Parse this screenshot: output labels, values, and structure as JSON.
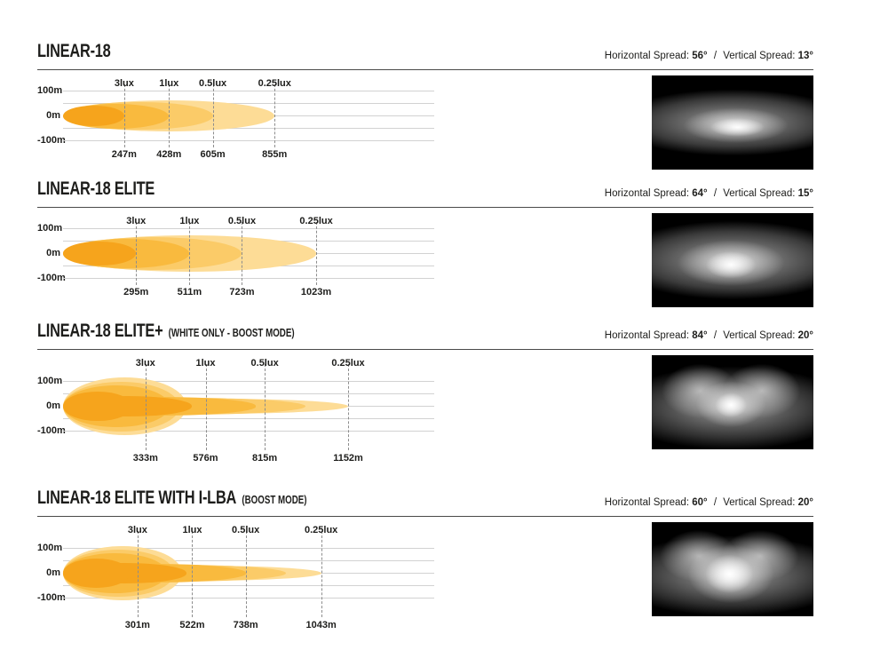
{
  "colors": {
    "beam_contours": [
      "#F6A41C",
      "#F9BA3E",
      "#FBCB68",
      "#FDDC96"
    ],
    "grid_line": "#d2d2d2",
    "dash_line": "#8d8d8d",
    "text": "#1d1d1b"
  },
  "axis": {
    "y_labels": [
      "100m",
      "0m",
      "-100m"
    ]
  },
  "sections": [
    {
      "title": "LINEAR-18",
      "note": "",
      "spread": {
        "h_label": "Horizontal Spread:",
        "h_value": "56°",
        "separator": "/",
        "v_label": "Vertical Spread:",
        "v_value": "13°"
      }
    },
    {
      "title": "LINEAR-18 ELITE",
      "note": "",
      "spread": {
        "h_label": "Horizontal Spread:",
        "h_value": "64°",
        "separator": "/",
        "v_label": "Vertical Spread:",
        "v_value": "15°"
      }
    },
    {
      "title": "LINEAR-18 ELITE+",
      "note": "(WHITE ONLY - BOOST MODE)",
      "spread": {
        "h_label": "Horizontal Spread:",
        "h_value": "84°",
        "separator": "/",
        "v_label": "Vertical Spread:",
        "v_value": "20°"
      }
    },
    {
      "title": "LINEAR-18 ELITE WITH I-LBA",
      "note": "(BOOST MODE)",
      "spread": {
        "h_label": "Horizontal Spread:",
        "h_value": "60°",
        "separator": "/",
        "v_label": "Vertical Spread:",
        "v_value": "20°"
      }
    }
  ],
  "chart_data": [
    {
      "type": "area",
      "title": "LINEAR-18 beam pattern",
      "horizontal_spread_deg": 56,
      "vertical_spread_deg": 13,
      "beam_style": "ellipse",
      "x_axis": {
        "unit": "m",
        "max_m": 1500
      },
      "y_axis": {
        "labels": [
          "100m",
          "0m",
          "-100m"
        ],
        "gridlines_m": [
          100,
          50,
          0,
          -50,
          -100
        ]
      },
      "contours": [
        {
          "lux": "3lux",
          "distance_m": 247,
          "distance_label": "247m",
          "half_height_m": 42
        },
        {
          "lux": "1lux",
          "distance_m": 428,
          "distance_label": "428m",
          "half_height_m": 50
        },
        {
          "lux": "0.5lux",
          "distance_m": 605,
          "distance_label": "605m",
          "half_height_m": 57
        },
        {
          "lux": "0.25lux",
          "distance_m": 855,
          "distance_label": "855m",
          "half_height_m": 63
        }
      ]
    },
    {
      "type": "area",
      "title": "LINEAR-18 ELITE beam pattern",
      "horizontal_spread_deg": 64,
      "vertical_spread_deg": 15,
      "beam_style": "ellipse",
      "x_axis": {
        "unit": "m",
        "max_m": 1500
      },
      "y_axis": {
        "labels": [
          "100m",
          "0m",
          "-100m"
        ],
        "gridlines_m": [
          100,
          50,
          0,
          -50,
          -100
        ]
      },
      "contours": [
        {
          "lux": "3lux",
          "distance_m": 295,
          "distance_label": "295m",
          "half_height_m": 48
        },
        {
          "lux": "1lux",
          "distance_m": 511,
          "distance_label": "511m",
          "half_height_m": 58
        },
        {
          "lux": "0.5lux",
          "distance_m": 723,
          "distance_label": "723m",
          "half_height_m": 66
        },
        {
          "lux": "0.25lux",
          "distance_m": 1023,
          "distance_label": "1023m",
          "half_height_m": 72
        }
      ]
    },
    {
      "type": "area",
      "title": "LINEAR-18 ELITE+ (WHITE ONLY - BOOST MODE) beam pattern",
      "horizontal_spread_deg": 84,
      "vertical_spread_deg": 20,
      "beam_style": "flame",
      "x_axis": {
        "unit": "m",
        "max_m": 1500
      },
      "y_axis": {
        "labels": [
          "100m",
          "0m",
          "-100m"
        ],
        "gridlines_m": [
          100,
          50,
          0,
          -50,
          -100
        ]
      },
      "contours": [
        {
          "lux": "3lux",
          "distance_m": 333,
          "distance_label": "333m",
          "half_height_m": 40,
          "draw_reach_m": 520,
          "flare_reach_m": 280,
          "flare_half_height_m": 60
        },
        {
          "lux": "1lux",
          "distance_m": 576,
          "distance_label": "576m",
          "half_height_m": 36,
          "draw_reach_m": 780,
          "flare_reach_m": 430,
          "flare_half_height_m": 84
        },
        {
          "lux": "0.5lux",
          "distance_m": 815,
          "distance_label": "815m",
          "half_height_m": 34,
          "draw_reach_m": 980,
          "flare_reach_m": 470,
          "flare_half_height_m": 100
        },
        {
          "lux": "0.25lux",
          "distance_m": 1152,
          "distance_label": "1152m",
          "half_height_m": 32,
          "flare_reach_m": 500,
          "flare_half_height_m": 116
        }
      ]
    },
    {
      "type": "area",
      "title": "LINEAR-18 ELITE WITH I-LBA (BOOST MODE) beam pattern",
      "horizontal_spread_deg": 60,
      "vertical_spread_deg": 20,
      "beam_style": "flame",
      "x_axis": {
        "unit": "m",
        "max_m": 1500
      },
      "y_axis": {
        "labels": [
          "100m",
          "0m",
          "-100m"
        ],
        "gridlines_m": [
          100,
          50,
          0,
          -50,
          -100
        ]
      },
      "contours": [
        {
          "lux": "3lux",
          "distance_m": 301,
          "distance_label": "301m",
          "half_height_m": 40,
          "draw_reach_m": 500,
          "flare_reach_m": 270,
          "flare_half_height_m": 58
        },
        {
          "lux": "1lux",
          "distance_m": 522,
          "distance_label": "522m",
          "half_height_m": 36,
          "draw_reach_m": 740,
          "flare_reach_m": 420,
          "flare_half_height_m": 80
        },
        {
          "lux": "0.5lux",
          "distance_m": 738,
          "distance_label": "738m",
          "half_height_m": 34,
          "draw_reach_m": 900,
          "flare_reach_m": 450,
          "flare_half_height_m": 94
        },
        {
          "lux": "0.25lux",
          "distance_m": 1043,
          "distance_label": "1043m",
          "half_height_m": 32,
          "flare_reach_m": 480,
          "flare_half_height_m": 110
        }
      ]
    }
  ]
}
